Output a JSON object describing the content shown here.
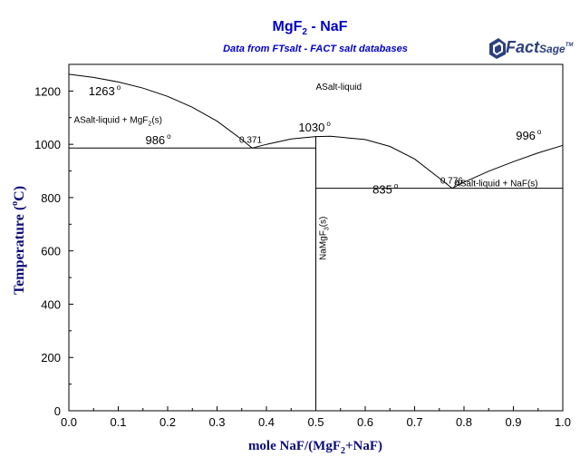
{
  "chart_data": {
    "type": "line",
    "title": {
      "main": "MgF",
      "sub": "2",
      "rest": " - NaF"
    },
    "subtitle": "Data from FTsalt - FACT salt databases",
    "ylabel": {
      "text": "Temperature (",
      "deg": "o",
      "unit": "C)"
    },
    "xlabel": {
      "a": "mole NaF/(MgF",
      "sub": "2",
      "b": "+NaF)"
    },
    "xlim": [
      0,
      1
    ],
    "ylim": [
      0,
      1300
    ],
    "x_ticks": [
      "0.0",
      "0.1",
      "0.2",
      "0.3",
      "0.4",
      "0.5",
      "0.6",
      "0.7",
      "0.8",
      "0.9",
      "1.0"
    ],
    "y_ticks": [
      "0",
      "200",
      "400",
      "600",
      "800",
      "1000",
      "1200"
    ],
    "grid": false,
    "series": [
      {
        "points": [
          [
            0,
            1263
          ],
          [
            0.05,
            1251
          ],
          [
            0.1,
            1234
          ],
          [
            0.15,
            1211
          ],
          [
            0.2,
            1180
          ],
          [
            0.25,
            1139
          ],
          [
            0.3,
            1087
          ],
          [
            0.35,
            1018
          ],
          [
            0.371,
            986
          ]
        ]
      },
      {
        "points": [
          [
            0.371,
            986
          ],
          [
            0.4,
            1000
          ],
          [
            0.45,
            1020
          ],
          [
            0.5,
            1029
          ],
          [
            0.53,
            1030
          ],
          [
            0.6,
            1018
          ],
          [
            0.65,
            992
          ],
          [
            0.7,
            945
          ],
          [
            0.75,
            873
          ],
          [
            0.776,
            835
          ]
        ]
      },
      {
        "points": [
          [
            0.776,
            835
          ],
          [
            0.8,
            858
          ],
          [
            0.85,
            899
          ],
          [
            0.9,
            935
          ],
          [
            0.95,
            968
          ],
          [
            1.0,
            996
          ]
        ]
      },
      {
        "points": [
          [
            0,
            986
          ],
          [
            0.5,
            986
          ]
        ]
      },
      {
        "points": [
          [
            0.5,
            835
          ],
          [
            1,
            835
          ]
        ]
      },
      {
        "points": [
          [
            0.5,
            0
          ],
          [
            0.5,
            1030
          ]
        ]
      }
    ],
    "annotations": [
      {
        "text": "1263",
        "deg": true,
        "x": 0.04,
        "y": 1185
      },
      {
        "text": "ASalt-liquid",
        "x": 0.5,
        "y": 1205
      },
      {
        "text": "ASalt-liquid + MgF",
        "sub": "2",
        "tail": "(s)",
        "x": 0.01,
        "y": 1080
      },
      {
        "text": "0.371",
        "x": 0.345,
        "y": 1005
      },
      {
        "text": "1030",
        "deg": true,
        "x": 0.465,
        "y": 1048
      },
      {
        "text": "986",
        "deg": true,
        "x": 0.155,
        "y": 1000
      },
      {
        "text": "996",
        "deg": true,
        "x": 0.905,
        "y": 1018
      },
      {
        "text": "0.776",
        "x": 0.752,
        "y": 852
      },
      {
        "text": "ASalt-liquid + NaF(s)",
        "x": 0.78,
        "y": 842
      },
      {
        "text": "835",
        "deg": true,
        "x": 0.615,
        "y": 815
      }
    ],
    "vertical_label": {
      "text": "NaMgF",
      "sub": "3",
      "tail": "(s)"
    }
  },
  "logo": {
    "text": "Fact",
    "sage": "Sage",
    "tm": "TM"
  }
}
